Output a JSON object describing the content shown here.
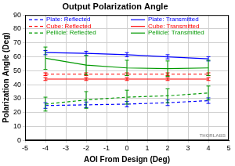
{
  "chart_data": {
    "type": "line",
    "title": "Output Polarization Angle",
    "x_label": "AOI From Design (Deg)",
    "y_label": "Polarization Angle (Deg)",
    "x": [
      -4,
      -2,
      0,
      2,
      4
    ],
    "xlim": [
      -5,
      5
    ],
    "xticks": [
      -5,
      -4,
      -3,
      -2,
      -1,
      0,
      1,
      2,
      3,
      4,
      5
    ],
    "ylim": [
      0,
      90
    ],
    "yticks": [
      0,
      10,
      20,
      30,
      40,
      50,
      60,
      70,
      80,
      90
    ],
    "grid": true,
    "legend": "top",
    "annotations": [
      {
        "text": "THORLABS"
      }
    ],
    "series": [
      {
        "name": "Plate: Reflected",
        "color": "#0000ff",
        "line_style": "dashed",
        "values": [
          25,
          25.5,
          26,
          27,
          28.5
        ],
        "errors": [
          2,
          2,
          2,
          2,
          2
        ]
      },
      {
        "name": "Plate: Transmitted",
        "color": "#0000ff",
        "line_style": "solid",
        "values": [
          63,
          62.5,
          61.5,
          60,
          58.5
        ],
        "errors": [
          1.5,
          1.5,
          1.5,
          1.5,
          1.5
        ]
      },
      {
        "name": "Cube: Reflected",
        "color": "#ff0000",
        "line_style": "dashed",
        "values": [
          47.5,
          47.5,
          47.5,
          47.5,
          47.5
        ],
        "errors": [
          1,
          1,
          1,
          1,
          1
        ]
      },
      {
        "name": "Cube: Transmitted",
        "color": "#ff0000",
        "line_style": "solid",
        "values": [
          44,
          44,
          44,
          44,
          44
        ],
        "errors": [
          1,
          1,
          1,
          1,
          1
        ]
      },
      {
        "name": "Pellicle: Reflected",
        "color": "#009900",
        "line_style": "dashed",
        "values": [
          26,
          29,
          31,
          32,
          34
        ],
        "errors": [
          5,
          6,
          5,
          5,
          5
        ]
      },
      {
        "name": "Pellicle: Transmitted",
        "color": "#009900",
        "line_style": "solid",
        "values": [
          59,
          54,
          52,
          51.5,
          52
        ],
        "errors": [
          8,
          7,
          5.5,
          5.5,
          5.5
        ]
      }
    ]
  }
}
